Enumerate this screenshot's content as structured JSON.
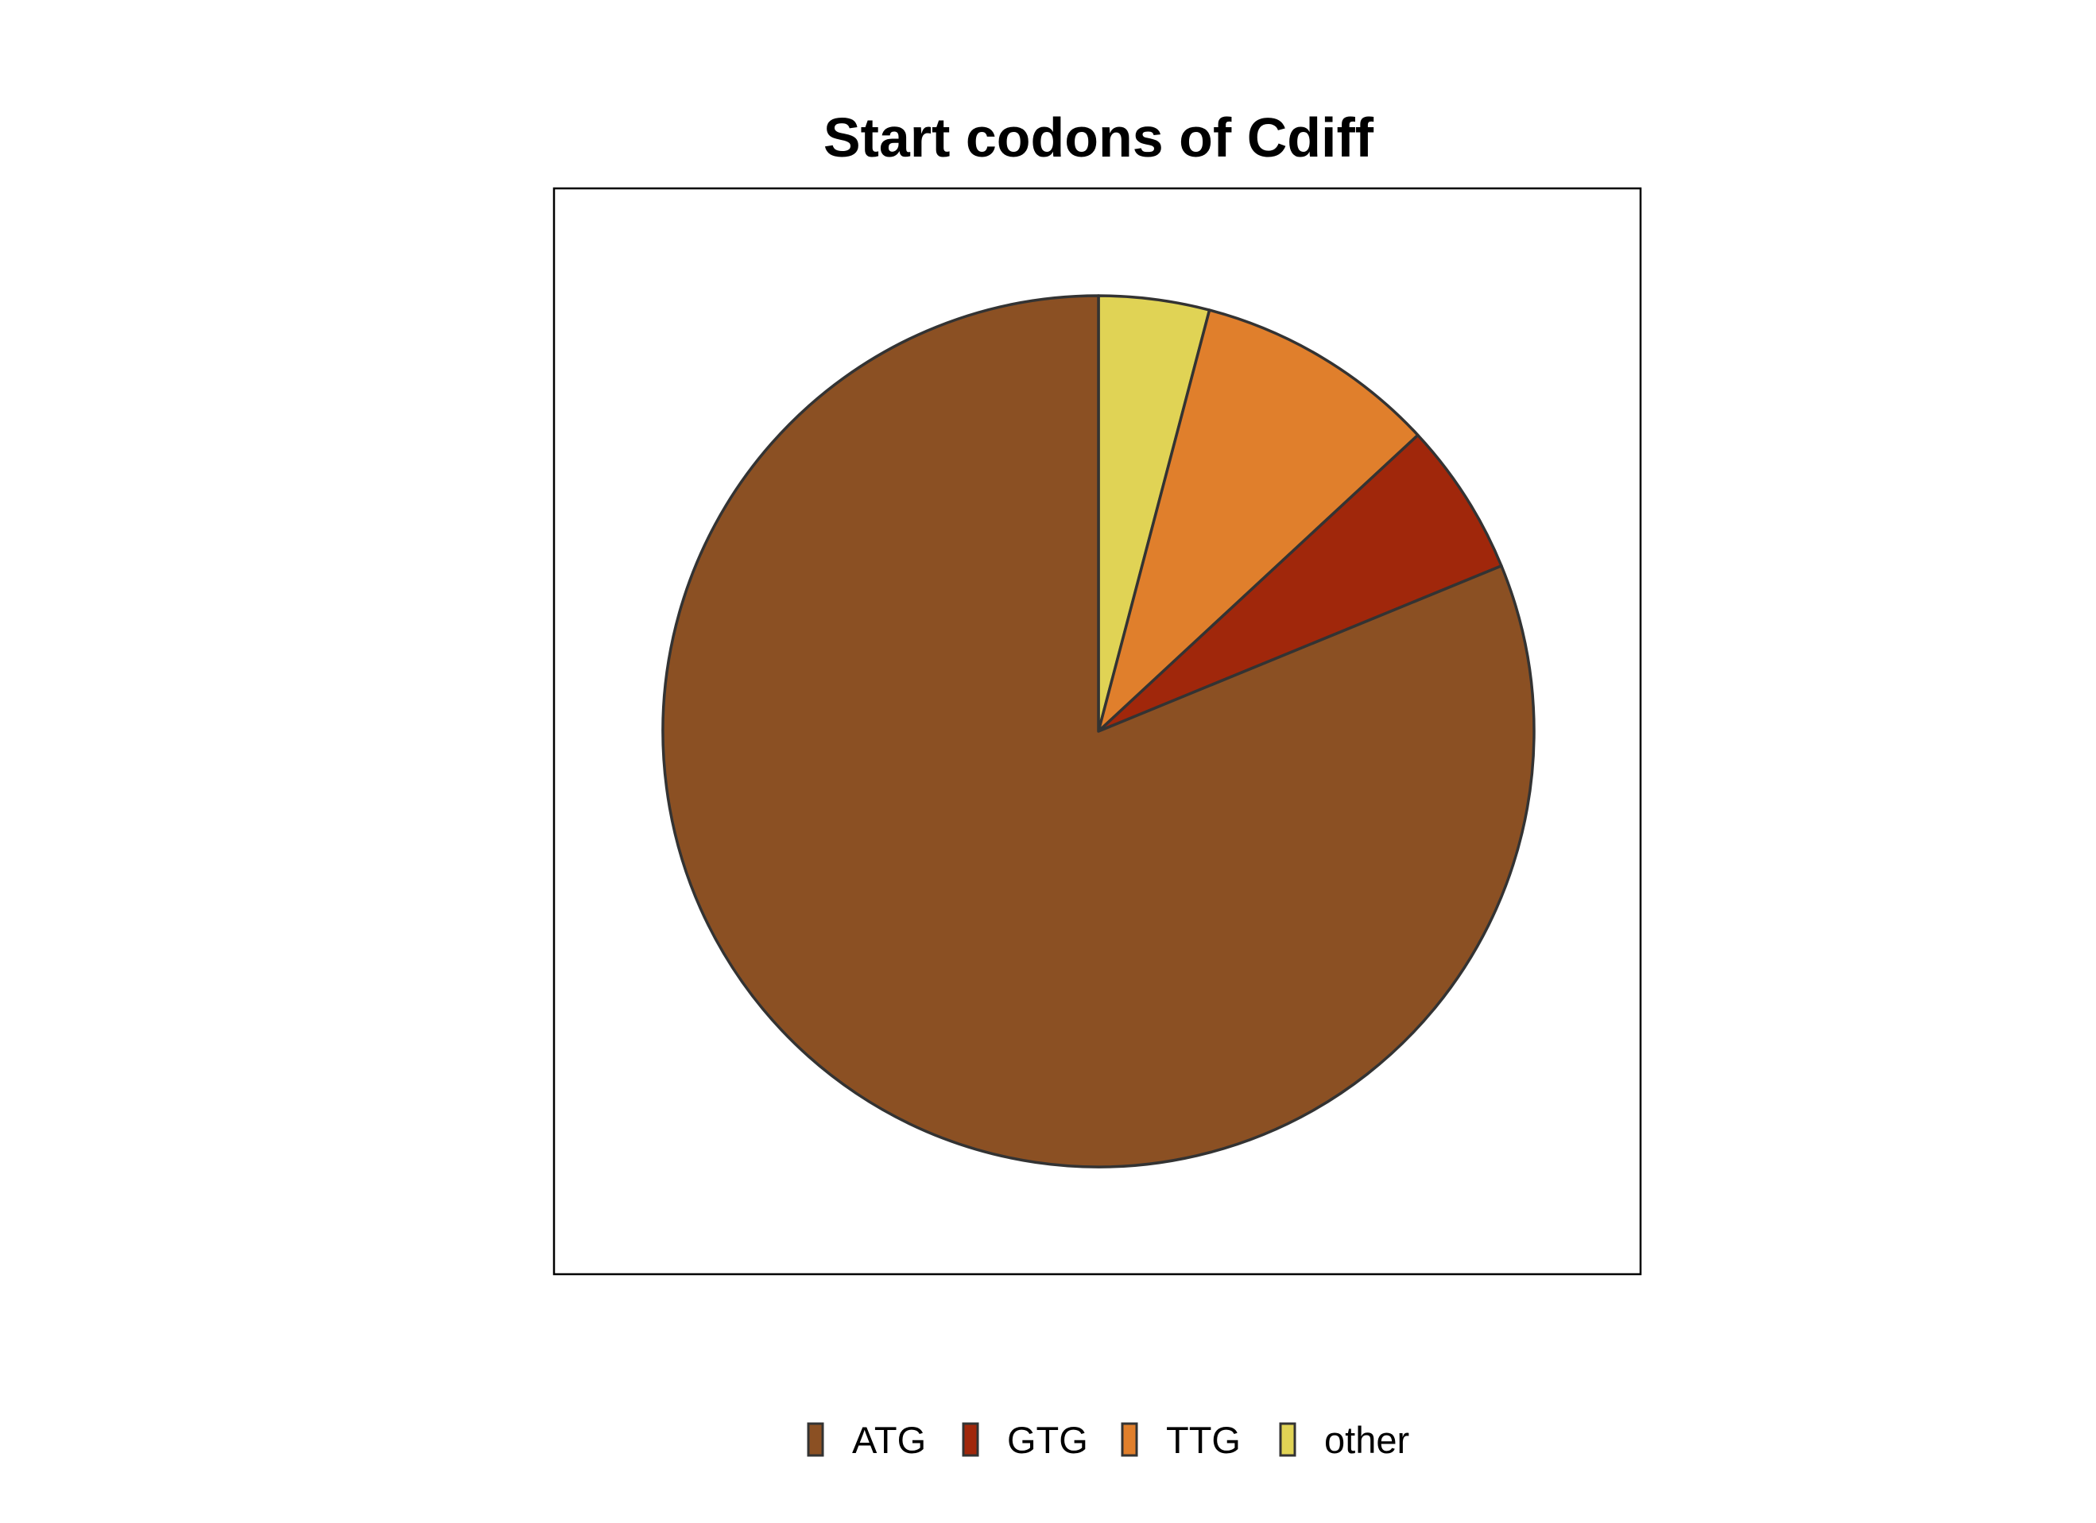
{
  "chart_data": {
    "type": "pie",
    "title": "Start codons of Cdiff",
    "categories": [
      "ATG",
      "GTG",
      "TTG",
      "other"
    ],
    "values": [
      81.2,
      5.7,
      9.0,
      4.1
    ],
    "colors": [
      "#8B5023",
      "#A0270B",
      "#E07F2C",
      "#E0D355"
    ],
    "legend_order": [
      "ATG",
      "GTG",
      "TTG",
      "other"
    ],
    "legend_position": "bottom",
    "slice_drawing_order": [
      "other",
      "TTG",
      "GTG",
      "ATG"
    ],
    "start_angle": "12 o'clock",
    "direction": "clockwise",
    "outline_color": "#333333",
    "panel_border": true
  }
}
